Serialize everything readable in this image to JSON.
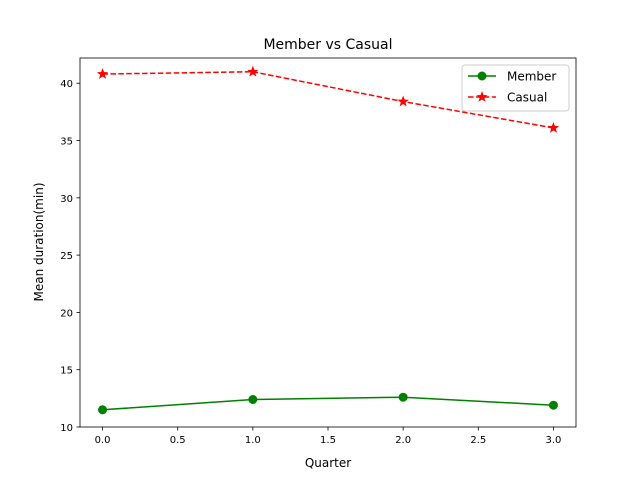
{
  "chart_data": {
    "type": "line",
    "title": "Member vs Casual",
    "xlabel": "Quarter",
    "ylabel": "Mean duration(min)",
    "x": [
      0,
      1,
      2,
      3
    ],
    "xlim": [
      -0.15,
      3.15
    ],
    "ylim": [
      10,
      42.2
    ],
    "xticks": [
      0.0,
      0.5,
      1.0,
      1.5,
      2.0,
      2.5,
      3.0
    ],
    "xtick_labels": [
      "0.0",
      "0.5",
      "1.0",
      "1.5",
      "2.0",
      "2.5",
      "3.0"
    ],
    "yticks": [
      10,
      15,
      20,
      25,
      30,
      35,
      40
    ],
    "ytick_labels": [
      "10",
      "15",
      "20",
      "25",
      "30",
      "35",
      "40"
    ],
    "grid": false,
    "legend_position": "top-right",
    "series": [
      {
        "name": "Member",
        "values": [
          11.5,
          12.4,
          12.6,
          11.9
        ],
        "color": "#008000",
        "linestyle": "solid",
        "marker": "circle"
      },
      {
        "name": "Casual",
        "values": [
          40.8,
          41.0,
          38.4,
          36.1
        ],
        "color": "#ff0000",
        "linestyle": "dashed",
        "marker": "star"
      }
    ]
  }
}
